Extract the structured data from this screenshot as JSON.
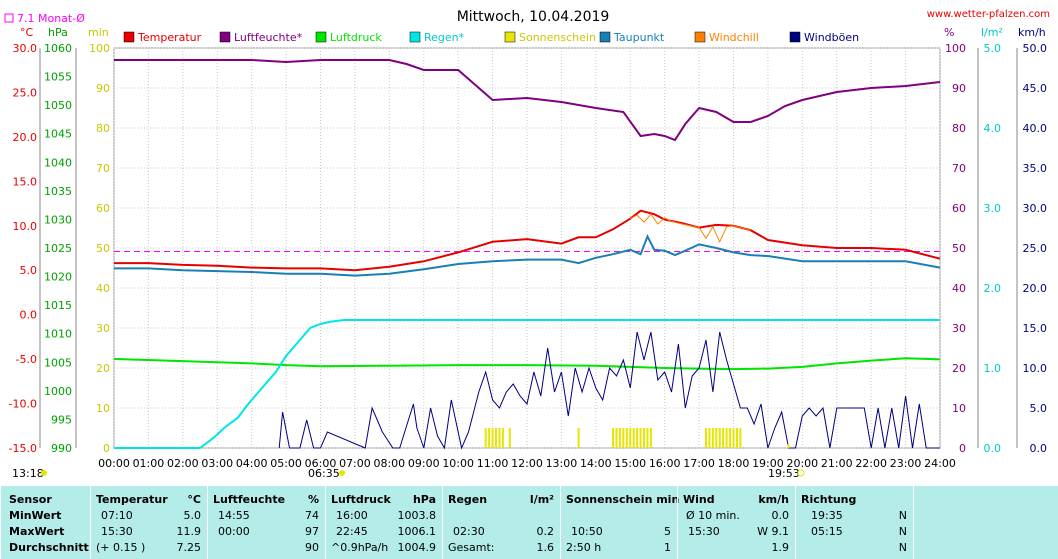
{
  "title": "Mittwoch, 10.04.2019",
  "site": "www.wetter-pfalzen.com",
  "monthly_avg_label": "7.1 Monat-Ø",
  "units_left": [
    "°C",
    "hPa",
    "min"
  ],
  "units_right": [
    "%",
    "l/m²",
    "km/h"
  ],
  "sunrise": "06:35",
  "sunset": "19:53",
  "day_length": "13:18",
  "colors": {
    "Temperatur": "#e60000",
    "Luftfeuchte": "#800080",
    "Luftdruck": "#00e600",
    "Regen": "#00e6e6",
    "Sonnenschein": "#e6e600",
    "Taupunkt": "#1a7fb5",
    "Windchill": "#ff8000",
    "Windboeen": "#000080",
    "monthly_avg": "#ff00ff",
    "table_bg": "#b4ecea"
  },
  "chart_data": {
    "type": "line",
    "title": "Mittwoch, 10.04.2019",
    "legend": [
      "Temperatur",
      "Luftfeuchte*",
      "Luftdruck",
      "Regen*",
      "Sonnenschein",
      "Taupunkt",
      "Windchill",
      "Windböen"
    ],
    "x_ticks": [
      "00:00",
      "01:00",
      "02:00",
      "03:00",
      "04:00",
      "05:00",
      "06:00",
      "07:00",
      "08:00",
      "09:00",
      "10:00",
      "11:00",
      "12:00",
      "13:00",
      "14:00",
      "15:00",
      "16:00",
      "17:00",
      "18:00",
      "19:00",
      "20:00",
      "21:00",
      "22:00",
      "23:00",
      "24:00"
    ],
    "axes": {
      "temp_c": {
        "min": -15,
        "max": 30,
        "ticks": [
          "30.0",
          "25.0",
          "20.0",
          "15.0",
          "10.0",
          "5.0",
          "0.0",
          "-5.0",
          "-10.0",
          "-15.0"
        ]
      },
      "pressure_hpa": {
        "min": 990,
        "max": 1060,
        "ticks": [
          "1060",
          "1055",
          "1050",
          "1045",
          "1040",
          "1035",
          "1030",
          "1025",
          "1020",
          "1015",
          "1010",
          "1005",
          "1000",
          "995",
          "990"
        ]
      },
      "sun_min": {
        "min": 0,
        "max": 100,
        "ticks": [
          "100",
          "90",
          "80",
          "70",
          "60",
          "50",
          "40",
          "30",
          "20",
          "10",
          "0"
        ]
      },
      "humidity_pct": {
        "min": 0,
        "max": 100,
        "ticks": [
          "100",
          "90",
          "80",
          "70",
          "60",
          "50",
          "40",
          "30",
          "20",
          "10",
          "0"
        ]
      },
      "rain_lm2": {
        "min": 0,
        "max": 5,
        "ticks": [
          "5.0",
          "4.0",
          "3.0",
          "2.0",
          "1.0",
          "0.0"
        ]
      },
      "wind_kmh": {
        "min": 0,
        "max": 50,
        "ticks": [
          "50.0",
          "45.0",
          "40.0",
          "35.0",
          "30.0",
          "25.0",
          "20.0",
          "15.0",
          "10.0",
          "5.0",
          "0.0"
        ]
      }
    },
    "monthly_avg_temp": 7.1,
    "series": [
      {
        "name": "Luftfeuchte*",
        "axis": "humidity_pct",
        "x": [
          0,
          2,
          4,
          5,
          6,
          8,
          8.5,
          9,
          10,
          11,
          12,
          13,
          14,
          14.8,
          15.3,
          15.7,
          16,
          16.3,
          16.6,
          17,
          17.5,
          18,
          18.5,
          19,
          19.5,
          20,
          21,
          22,
          23,
          24
        ],
        "values": [
          97,
          97,
          97,
          96.5,
          97,
          97,
          96,
          94.5,
          94.5,
          87,
          87.5,
          86.5,
          85,
          84,
          78,
          78.5,
          78,
          77,
          81,
          85,
          84,
          81.5,
          81.5,
          83,
          85.5,
          87,
          89,
          90,
          90.5,
          91.5
        ]
      },
      {
        "name": "Temperatur",
        "axis": "temp_c",
        "x": [
          0,
          1,
          2,
          3,
          4,
          5,
          6,
          7,
          8,
          9,
          10,
          11,
          12,
          13,
          13.5,
          14,
          14.5,
          15,
          15.3,
          15.7,
          16,
          16.5,
          17,
          17.5,
          18,
          18.5,
          19,
          20,
          21,
          22,
          23,
          24
        ],
        "values": [
          5.8,
          5.8,
          5.6,
          5.5,
          5.3,
          5.2,
          5.2,
          5.0,
          5.4,
          6.0,
          7.0,
          8.2,
          8.5,
          8.0,
          8.7,
          8.7,
          9.6,
          10.8,
          11.7,
          11.3,
          10.7,
          10.3,
          9.8,
          10.1,
          10.0,
          9.5,
          8.4,
          7.8,
          7.5,
          7.5,
          7.3,
          6.3
        ]
      },
      {
        "name": "Windchill",
        "axis": "temp_c",
        "x": [
          15,
          15.2,
          15.4,
          15.6,
          15.8,
          16,
          16.2,
          16.5,
          17,
          17.2,
          17.4,
          17.6,
          17.8,
          18,
          18.5
        ],
        "values": [
          10.8,
          11.2,
          10.4,
          11.3,
          10.2,
          10.9,
          10.5,
          10.2,
          9.8,
          8.6,
          9.9,
          8.2,
          9.9,
          10.0,
          9.5
        ]
      },
      {
        "name": "Taupunkt",
        "axis": "temp_c",
        "x": [
          0,
          1,
          2,
          3,
          4,
          5,
          6,
          7,
          8,
          9,
          10,
          11,
          12,
          13,
          13.5,
          14,
          14.5,
          15,
          15.3,
          15.5,
          15.7,
          16,
          16.3,
          16.6,
          17,
          17.5,
          18,
          18.5,
          19,
          20,
          21,
          22,
          23,
          24
        ],
        "values": [
          5.2,
          5.2,
          5.0,
          4.9,
          4.8,
          4.6,
          4.6,
          4.4,
          4.6,
          5.1,
          5.7,
          6.0,
          6.2,
          6.2,
          5.8,
          6.4,
          6.8,
          7.3,
          6.8,
          8.8,
          7.3,
          7.2,
          6.7,
          7.2,
          7.9,
          7.5,
          7.0,
          6.7,
          6.6,
          6.0,
          6.0,
          6.0,
          6.0,
          5.3
        ]
      },
      {
        "name": "Luftdruck",
        "axis": "pressure_hpa",
        "x": [
          0,
          2,
          4,
          5,
          6,
          8,
          10,
          12,
          14,
          15,
          16,
          17,
          18,
          19,
          20,
          21,
          22,
          23,
          24
        ],
        "values": [
          1005.6,
          1005.2,
          1004.8,
          1004.5,
          1004.3,
          1004.4,
          1004.5,
          1004.5,
          1004.4,
          1004.2,
          1004.0,
          1003.9,
          1003.8,
          1003.9,
          1004.2,
          1004.8,
          1005.3,
          1005.7,
          1005.5
        ]
      },
      {
        "name": "Regen*",
        "axis": "rain_lm2",
        "x": [
          0,
          2.5,
          2.9,
          3.2,
          3.6,
          3.9,
          4.3,
          4.7,
          5.0,
          5.3,
          5.7,
          6.0,
          6.3,
          6.7,
          7,
          24
        ],
        "values": [
          0,
          0,
          0.13,
          0.25,
          0.38,
          0.55,
          0.75,
          0.95,
          1.15,
          1.3,
          1.5,
          1.55,
          1.58,
          1.6,
          1.6,
          1.6
        ]
      },
      {
        "name": "Windböen",
        "axis": "wind_kmh",
        "x": [
          4.8,
          4.9,
          5.1,
          5.4,
          5.6,
          5.8,
          6.0,
          6.2,
          7.3,
          7.5,
          7.8,
          8.1,
          8.3,
          8.7,
          8.8,
          9.0,
          9.2,
          9.4,
          9.6,
          9.8,
          10.1,
          10.3,
          10.6,
          10.8,
          11.0,
          11.2,
          11.4,
          11.6,
          11.8,
          12.0,
          12.2,
          12.4,
          12.6,
          12.8,
          13.0,
          13.2,
          13.4,
          13.6,
          13.8,
          14.0,
          14.2,
          14.4,
          14.6,
          14.8,
          15.0,
          15.2,
          15.4,
          15.6,
          15.8,
          16.0,
          16.2,
          16.4,
          16.6,
          16.8,
          17.0,
          17.2,
          17.4,
          17.6,
          17.8,
          18.0,
          18.2,
          18.4,
          18.6,
          18.8,
          19.0,
          19.2,
          19.4,
          19.6,
          19.8,
          20.0,
          20.2,
          20.4,
          20.6,
          20.8,
          21.0,
          21.2,
          21.4,
          21.6,
          21.8,
          22.0,
          22.2,
          22.4,
          22.6,
          22.8,
          23.0,
          23.2,
          23.4,
          23.6,
          23.8,
          24.0
        ],
        "values": [
          0,
          4.5,
          0,
          0,
          3.5,
          0,
          0,
          2,
          0,
          5,
          2,
          0,
          0,
          5.5,
          2.5,
          0,
          5,
          1.5,
          0,
          6,
          0,
          2,
          7,
          9.5,
          6,
          5,
          7,
          8,
          6.5,
          5.5,
          9.5,
          6.5,
          12.5,
          7,
          9.5,
          4,
          10,
          7,
          10,
          7.5,
          6,
          10,
          9,
          11,
          7.5,
          14.5,
          11,
          14.5,
          8.5,
          9.5,
          7,
          13,
          5,
          9,
          10,
          13.5,
          7,
          14.5,
          11,
          8,
          5,
          5,
          3,
          5.5,
          0,
          2.5,
          4.5,
          0,
          0,
          4,
          5,
          4,
          5,
          0,
          5,
          5,
          5,
          5,
          5,
          0,
          5,
          0,
          5,
          0,
          6.5,
          0,
          5.5,
          0,
          0,
          0
        ]
      },
      {
        "name": "Sonnenschein",
        "axis": "sun_min",
        "x": [
          10.8,
          10.9,
          11.0,
          11.1,
          11.2,
          11.3,
          11.5,
          13.5,
          14.5,
          14.6,
          14.7,
          14.8,
          14.9,
          15.0,
          15.1,
          15.2,
          15.3,
          15.4,
          15.5,
          15.6,
          17.2,
          17.3,
          17.4,
          17.5,
          17.6,
          17.7,
          17.8,
          17.9,
          18.0,
          18.1,
          18.2,
          19.6
        ],
        "values": [
          5,
          5,
          5,
          5,
          5,
          5,
          5,
          5,
          5,
          5,
          5,
          5,
          5,
          5,
          5,
          5,
          5,
          5,
          5,
          5,
          5,
          5,
          5,
          5,
          5,
          5,
          5,
          5,
          5,
          5,
          5,
          1
        ]
      }
    ]
  },
  "table": {
    "row_labels": [
      "Sensor",
      "MinWert",
      "MaxWert",
      "Durchschnitt"
    ],
    "temperature": {
      "header": "Temperatur",
      "unit": "°C",
      "min_time": "07:10",
      "min": "5.0",
      "max_time": "15:30",
      "max": "11.9",
      "avg_note": "(+ 0.15 )",
      "avg": "7.25"
    },
    "humidity": {
      "header": "Luftfeuchte",
      "unit": "%",
      "min_time": "14:55",
      "min": "74",
      "max_time": "00:00",
      "max": "97",
      "avg": "90"
    },
    "pressure": {
      "header": "Luftdruck",
      "unit": "hPa",
      "min_time": "16:00",
      "min": "1003.8",
      "max_time": "22:45",
      "max": "1006.1",
      "avg_note": "^0.9hPa/h",
      "avg": "1004.9"
    },
    "rain": {
      "header": "Regen",
      "unit": "l/m²",
      "max_time": "02:30",
      "max": "0.2",
      "total_label": "Gesamt:",
      "total": "1.6"
    },
    "sun": {
      "header": "Sonnenschein min",
      "max_time": "10:50",
      "max": "5",
      "total_label": "2:50 h",
      "total": "1"
    },
    "wind": {
      "header": "Wind",
      "unit": "km/h",
      "min_label": "Ø 10 min.",
      "min": "0.0",
      "max_time": "15:30",
      "max": "W 9.1",
      "avg": "1.9"
    },
    "direction": {
      "header": "Richtung",
      "min_time": "19:35",
      "min": "N",
      "max_time": "05:15",
      "max": "N",
      "avg": "N"
    }
  }
}
